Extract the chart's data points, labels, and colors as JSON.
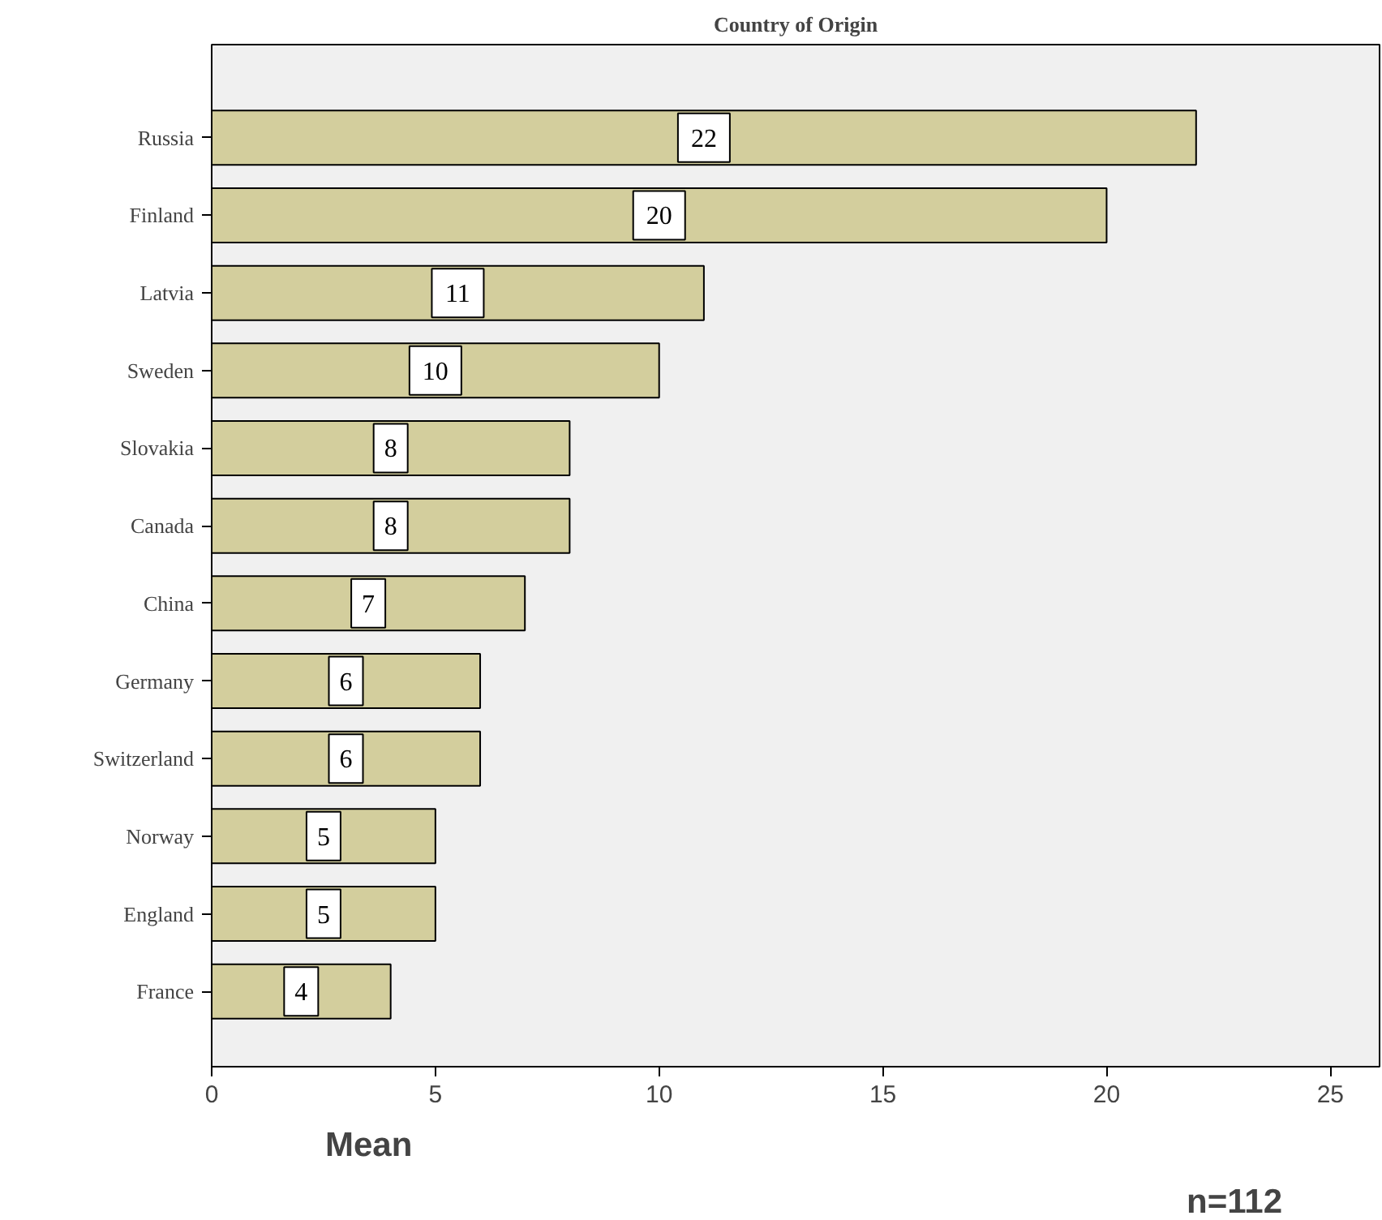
{
  "chart_data": {
    "type": "bar",
    "orientation": "horizontal",
    "title": "Country of Origin",
    "xlabel": "Mean",
    "categories": [
      "Russia",
      "Finland",
      "Latvia",
      "Sweden",
      "Slovakia",
      "Canada",
      "China",
      "Germany",
      "Switzerland",
      "Norway",
      "England",
      "France"
    ],
    "values": [
      22,
      20,
      11,
      10,
      8,
      8,
      7,
      6,
      6,
      5,
      5,
      4
    ],
    "color": "#d3ce9d",
    "data_labels": true,
    "xlim": [
      0,
      26.1
    ],
    "xticks": [
      0,
      5,
      10,
      15,
      20,
      25
    ],
    "grid": false,
    "annotations": [
      "n=112"
    ]
  }
}
